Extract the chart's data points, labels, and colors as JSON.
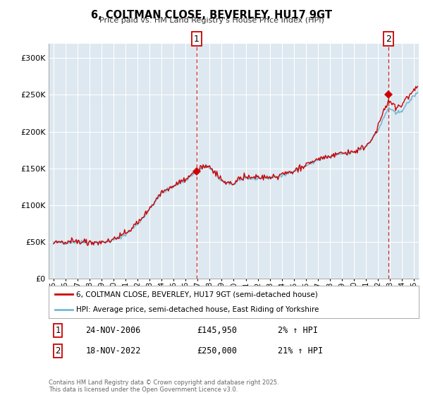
{
  "title": "6, COLTMAN CLOSE, BEVERLEY, HU17 9GT",
  "subtitle": "Price paid vs. HM Land Registry's House Price Index (HPI)",
  "legend_line1": "6, COLTMAN CLOSE, BEVERLEY, HU17 9GT (semi-detached house)",
  "legend_line2": "HPI: Average price, semi-detached house, East Riding of Yorkshire",
  "footnote": "Contains HM Land Registry data © Crown copyright and database right 2025.\nThis data is licensed under the Open Government Licence v3.0.",
  "marker1_date": "24-NOV-2006",
  "marker1_price": "£145,950",
  "marker1_hpi": "2% ↑ HPI",
  "marker1_x": 2006.9,
  "marker1_y": 145950,
  "marker2_date": "18-NOV-2022",
  "marker2_price": "£250,000",
  "marker2_hpi": "21% ↑ HPI",
  "marker2_x": 2022.88,
  "marker2_y": 250000,
  "red_color": "#cc0000",
  "blue_color": "#7ab8d4",
  "dashed_color": "#cc0000",
  "chart_bg": "#dde8f0",
  "background_color": "#ffffff",
  "grid_color": "#ffffff",
  "ylim": [
    0,
    320000
  ],
  "xlim_start": 1994.6,
  "xlim_end": 2025.4
}
